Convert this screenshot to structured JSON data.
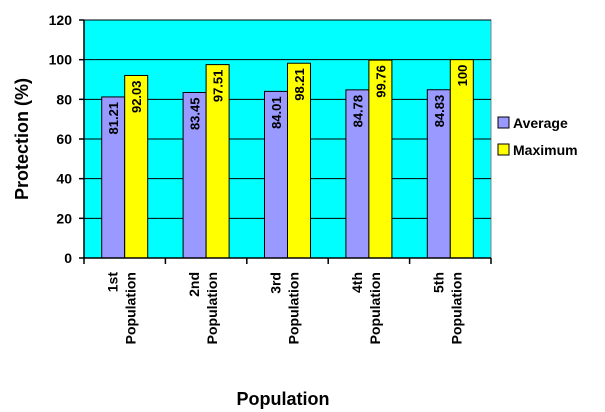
{
  "chart_data": {
    "type": "bar",
    "categories": [
      "1st Population",
      "2nd Population",
      "3rd Population",
      "4th Population",
      "5th Population"
    ],
    "category_lines": [
      [
        "1st",
        "Population"
      ],
      [
        "2nd",
        "Population"
      ],
      [
        "3rd",
        "Population"
      ],
      [
        "4th",
        "Population"
      ],
      [
        "5th",
        "Population"
      ]
    ],
    "series": [
      {
        "name": "Average",
        "values": [
          81.21,
          83.45,
          84.01,
          84.78,
          84.83
        ],
        "labels": [
          "81.21",
          "83.45",
          "84.01",
          "84.78",
          "84.83"
        ],
        "color": "#9999ff"
      },
      {
        "name": "Maximum",
        "values": [
          92.03,
          97.51,
          98.21,
          99.76,
          100
        ],
        "labels": [
          "92.03",
          "97.51",
          "98.21",
          "99.76",
          "100"
        ],
        "color": "#ffff00"
      }
    ],
    "xlabel": "Population",
    "ylabel": "Protection (%)",
    "ylim": [
      0,
      120
    ],
    "yticks": [
      0,
      20,
      40,
      60,
      80,
      100,
      120
    ],
    "grid": true,
    "legend_position": "right",
    "plot_background": "#00ffff"
  }
}
